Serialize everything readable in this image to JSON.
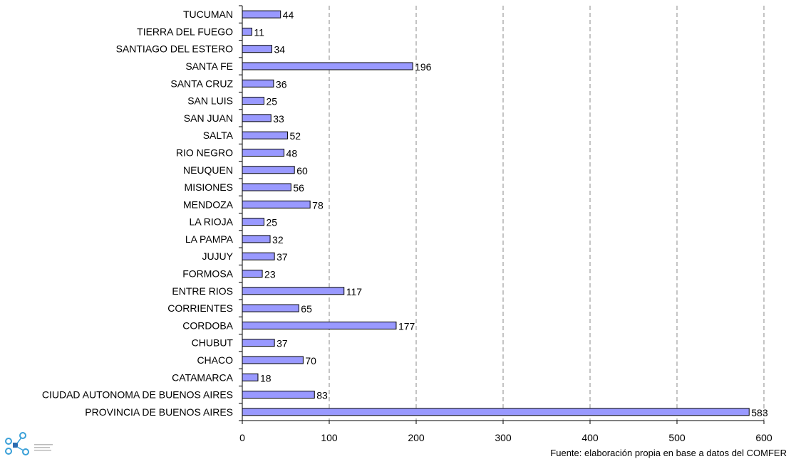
{
  "chart_data": {
    "type": "bar",
    "orientation": "horizontal",
    "categories": [
      "TUCUMAN",
      "TIERRA DEL FUEGO",
      "SANTIAGO DEL ESTERO",
      "SANTA FE",
      "SANTA CRUZ",
      "SAN LUIS",
      "SAN JUAN",
      "SALTA",
      "RIO NEGRO",
      "NEUQUEN",
      "MISIONES",
      "MENDOZA",
      "LA RIOJA",
      "LA PAMPA",
      "JUJUY",
      "FORMOSA",
      "ENTRE RIOS",
      "CORRIENTES",
      "CORDOBA",
      "CHUBUT",
      "CHACO",
      "CATAMARCA",
      "CIUDAD AUTONOMA DE BUENOS AIRES",
      "PROVINCIA DE BUENOS AIRES"
    ],
    "values": [
      44,
      11,
      34,
      196,
      36,
      25,
      33,
      52,
      48,
      60,
      56,
      78,
      25,
      32,
      37,
      23,
      117,
      65,
      177,
      37,
      70,
      18,
      83,
      583
    ],
    "xticks": [
      0,
      100,
      200,
      300,
      400,
      500,
      600
    ],
    "xlim": [
      0,
      600
    ],
    "grid": "vertical dashed",
    "bar_color": "#9999ff",
    "title": "",
    "xlabel": "",
    "ylabel": ""
  },
  "source_note": "Fuente: elaboración propia en base a datos del COMFER",
  "logo_icon": "network-nodes-icon"
}
